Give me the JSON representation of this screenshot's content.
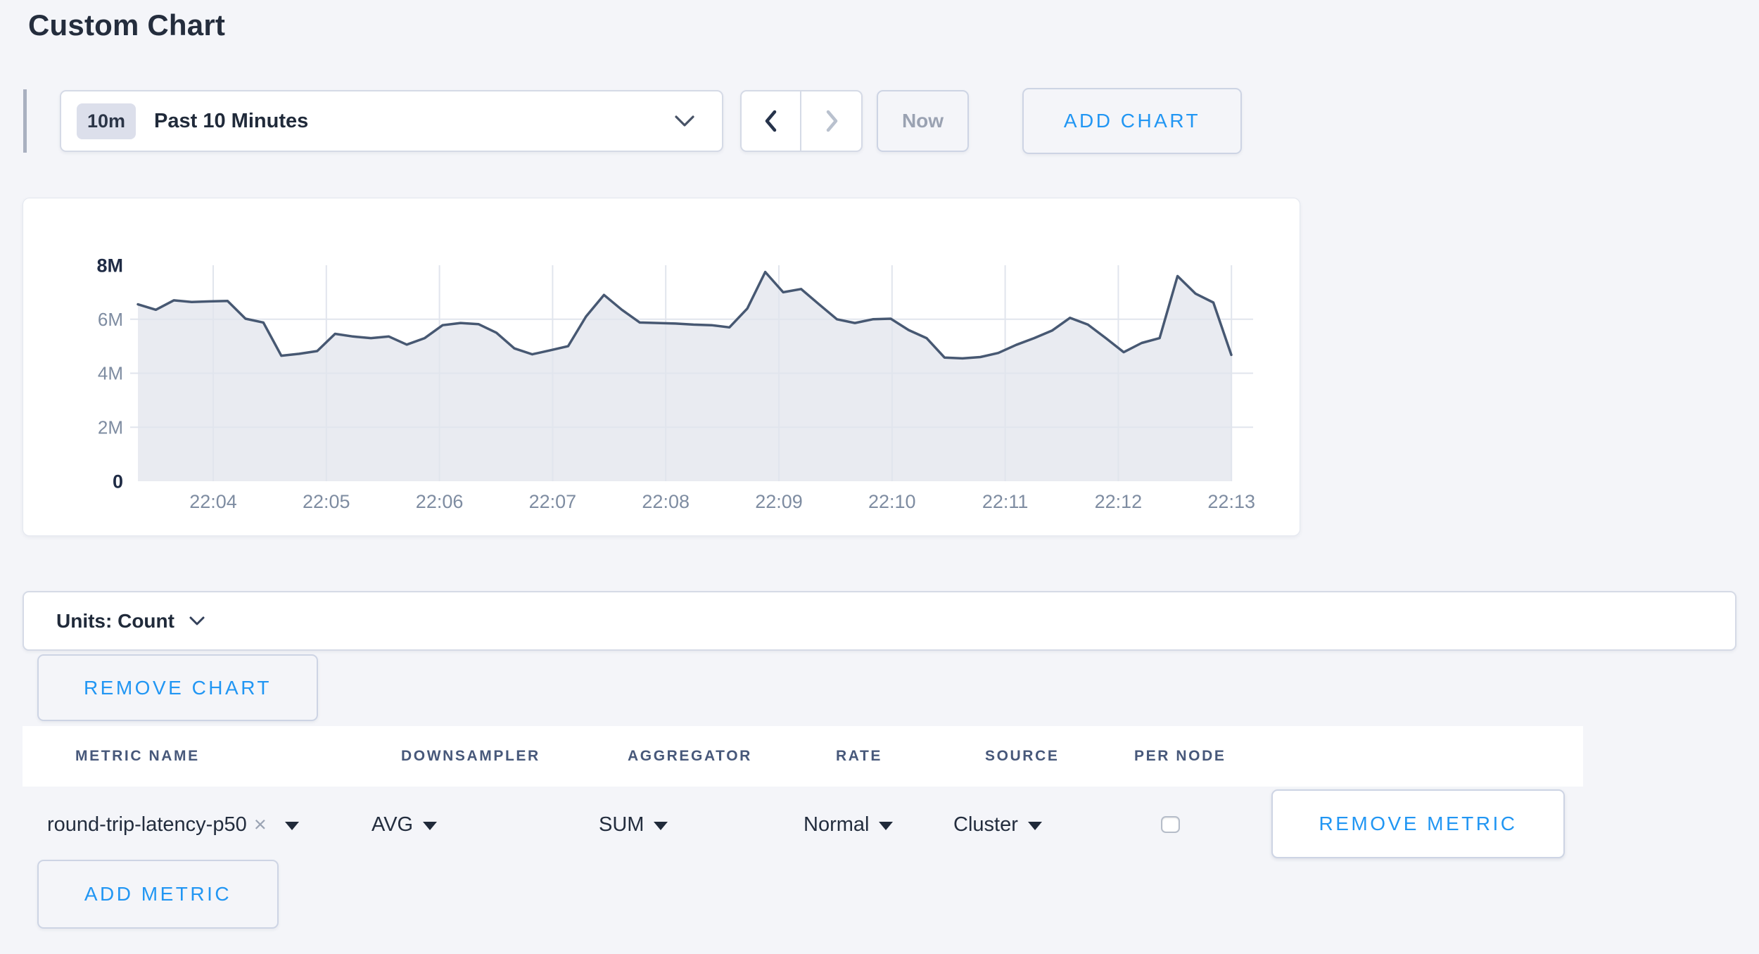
{
  "page": {
    "title": "Custom Chart",
    "background_color": "#f4f5f9",
    "accent_blue": "#2196f3"
  },
  "toolbar": {
    "range_badge": "10m",
    "range_label": "Past 10 Minutes",
    "now_label": "Now",
    "add_chart_label": "ADD CHART"
  },
  "icons": {
    "chevron_down": "chevron-down",
    "chevron_left": "chevron-left",
    "chevron_right": "chevron-right",
    "clear": "×",
    "caret_down": "▼"
  },
  "chart_data": {
    "type": "area",
    "title": "",
    "xlabel": "",
    "ylabel": "",
    "unit": "count",
    "x_ticks": [
      "22:04",
      "22:05",
      "22:06",
      "22:07",
      "22:08",
      "22:09",
      "22:10",
      "22:11",
      "22:12",
      "22:13"
    ],
    "y_ticks": [
      "0",
      "2M",
      "4M",
      "6M",
      "8M"
    ],
    "ylim": [
      0,
      8000000
    ],
    "grid": true,
    "legend_position": "none",
    "series": [
      {
        "name": "round-trip-latency-p50",
        "values_millions": [
          6.55,
          6.35,
          6.7,
          6.64,
          6.66,
          6.68,
          6.02,
          5.88,
          4.65,
          4.72,
          4.82,
          5.46,
          5.36,
          5.3,
          5.36,
          5.06,
          5.3,
          5.78,
          5.86,
          5.82,
          5.5,
          4.92,
          4.7,
          4.85,
          5.0,
          6.1,
          6.9,
          6.35,
          5.88,
          5.86,
          5.84,
          5.8,
          5.78,
          5.7,
          6.4,
          7.75,
          7.0,
          7.12,
          6.55,
          6.0,
          5.86,
          6.0,
          6.02,
          5.6,
          5.3,
          4.58,
          4.55,
          4.6,
          4.75,
          5.05,
          5.3,
          5.58,
          6.05,
          5.8,
          5.3,
          4.78,
          5.12,
          5.3,
          7.6,
          6.95,
          6.62,
          4.68
        ]
      }
    ],
    "colors": {
      "line": "#475872",
      "fill": "#e9ebf1",
      "grid": "#e1e5ed",
      "tick_label": "#7e8ca1",
      "minmax_label": "#1f2b45"
    }
  },
  "units_bar": {
    "label": "Units: Count"
  },
  "chart_actions": {
    "remove_chart_label": "REMOVE CHART"
  },
  "metrics_table": {
    "headers": [
      "METRIC NAME",
      "DOWNSAMPLER",
      "AGGREGATOR",
      "RATE",
      "SOURCE",
      "PER NODE"
    ],
    "rows": [
      {
        "metric_name": "round-trip-latency-p50",
        "downsampler": "AVG",
        "aggregator": "SUM",
        "rate": "Normal",
        "source": "Cluster",
        "per_node_checked": false,
        "remove_label": "REMOVE METRIC"
      }
    ],
    "add_metric_label": "ADD METRIC"
  }
}
